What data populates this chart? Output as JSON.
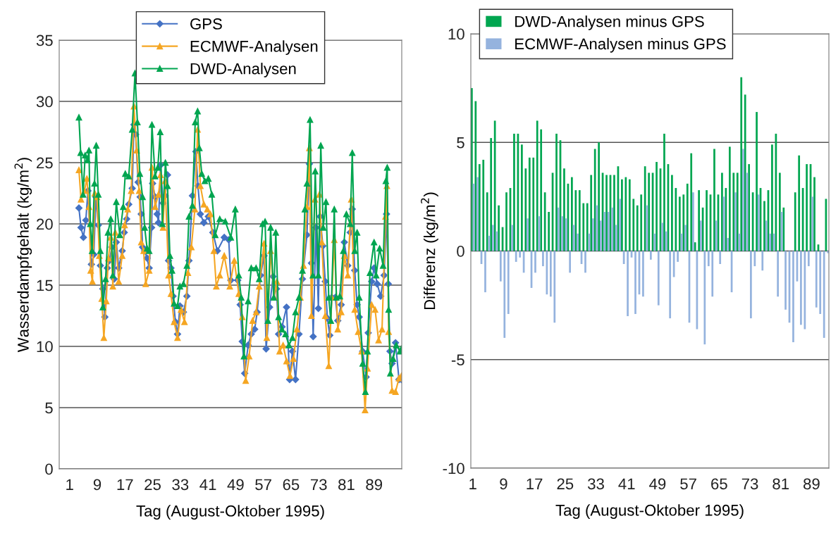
{
  "chart_data": [
    {
      "type": "line",
      "xlabel": "Tag (August-Oktober 1995)",
      "ylabel": "Wasserdampfgehalt (kg/m$^{2}$)",
      "xlim": [
        -2,
        97
      ],
      "xticks": [
        1,
        9,
        17,
        25,
        33,
        41,
        49,
        57,
        65,
        73,
        81,
        89
      ],
      "ylim": [
        0,
        35
      ],
      "yticks": [
        0,
        5,
        10,
        15,
        20,
        25,
        30,
        35
      ],
      "grid": "y",
      "legend": "top",
      "series": [
        {
          "name": "GPS",
          "color": "#4472c4",
          "marker": "diamond",
          "x": [
            3.7,
            4.3,
            5.0,
            5.7,
            6.3,
            7.3,
            8.0,
            8.6,
            9.3,
            9.9,
            10.6,
            11.2,
            11.9,
            12.5,
            13.2,
            13.9,
            14.5,
            15.2,
            16.2,
            16.8,
            17.5,
            18.1,
            19.1,
            19.6,
            20.1,
            20.8,
            21.4,
            21.7,
            22.1,
            22.7,
            23.4,
            24.0,
            24.7,
            25.0,
            25.7,
            26.3,
            26.7,
            27.3,
            28.0,
            28.6,
            29.3,
            29.6,
            30.3,
            30.9,
            31.6,
            32.2,
            32.9,
            33.9,
            34.9,
            35.5,
            36.5,
            37.5,
            38.1,
            38.8,
            39.8,
            41.1,
            42.4,
            43.7,
            45.7,
            47.0,
            47.6,
            49.6,
            50.3,
            50.9,
            51.6,
            52.6,
            53.5,
            54.5,
            55.2,
            56.2,
            57.2,
            57.8,
            58.8,
            59.8,
            60.8,
            61.4,
            62.4,
            63.7,
            64.6,
            65.4,
            66.3,
            67.3,
            68.3,
            69.6,
            70.3,
            70.9,
            71.4,
            72.2,
            72.9,
            73.4,
            74.2,
            74.9,
            75.5,
            76.2,
            76.8,
            77.8,
            78.5,
            79.5,
            80.4,
            81.4,
            82.1,
            82.7,
            83.4,
            84.1,
            84.7,
            85.7,
            86.7,
            87.3,
            88.3,
            89.0,
            89.9,
            90.9,
            91.9,
            92.6,
            93.1,
            93.6,
            94.2,
            95.2,
            96.2,
            96.9
          ],
          "values": [
            21.3,
            19.7,
            18.9,
            20.3,
            22.7,
            16.7,
            17.5,
            22.2,
            19.9,
            16.6,
            14.7,
            12.4,
            16.4,
            17.0,
            18.1,
            15.5,
            18.5,
            16.4,
            17.8,
            19.3,
            20.4,
            21.6,
            22.9,
            28.1,
            27.3,
            23.4,
            22.2,
            20.8,
            18.1,
            17.8,
            17.2,
            16.4,
            19.7,
            23.3,
            22.2,
            20.8,
            20.1,
            24.8,
            21.7,
            22.3,
            24.0,
            17.0,
            16.4,
            14.1,
            12.0,
            11.0,
            13.3,
            12.8,
            14.1,
            17.0,
            22.3,
            25.9,
            23.1,
            20.8,
            20.1,
            20.6,
            19.3,
            17.8,
            18.9,
            18.7,
            15.4,
            15.4,
            13.4,
            10.4,
            7.8,
            10.1,
            11.0,
            11.4,
            12.8,
            15.8,
            17.4,
            9.8,
            13.2,
            15.7,
            14.7,
            11.0,
            11.6,
            13.2,
            7.3,
            9.6,
            7.3,
            11.0,
            15.5,
            19.1,
            24.9,
            16.8,
            10.8,
            19.7,
            13.1,
            20.6,
            18.2,
            15.3,
            12.3,
            10.9,
            14.0,
            14.0,
            12.1,
            13.4,
            18.5,
            16.6,
            19.3,
            21.2,
            16.2,
            13.4,
            12.4,
            9.6,
            7.5,
            11.1,
            15.3,
            16.4,
            15.1,
            14.1,
            15.8,
            20.8,
            15.1,
            9.6,
            8.6,
            10.3,
            7.3,
            7.3
          ]
        },
        {
          "name": "ECMWF-Analysen",
          "color": "#f5a623",
          "marker": "triangle",
          "x": [
            3.7,
            4.3,
            5.3,
            6.0,
            6.6,
            7.1,
            7.6,
            8.3,
            8.9,
            9.6,
            10.3,
            10.9,
            11.6,
            12.2,
            12.9,
            13.5,
            14.2,
            15.2,
            16.2,
            16.9,
            17.8,
            18.8,
            19.6,
            20.4,
            21.1,
            21.7,
            22.4,
            23.0,
            24.0,
            24.8,
            25.7,
            26.7,
            27.3,
            28.0,
            28.6,
            29.6,
            30.3,
            31.2,
            32.2,
            33.2,
            34.2,
            35.2,
            36.2,
            37.2,
            38.0,
            38.8,
            39.8,
            40.8,
            41.7,
            42.7,
            43.4,
            44.4,
            45.7,
            47.3,
            48.6,
            49.9,
            50.9,
            51.9,
            52.9,
            53.9,
            54.9,
            55.8,
            57.2,
            58.0,
            59.1,
            60.1,
            60.9,
            61.7,
            62.7,
            63.7,
            64.7,
            65.7,
            66.7,
            67.7,
            68.6,
            69.6,
            70.3,
            70.9,
            71.9,
            73.2,
            73.9,
            74.9,
            75.9,
            76.8,
            77.5,
            78.5,
            79.5,
            80.4,
            81.4,
            82.4,
            83.4,
            84.4,
            85.4,
            86.4,
            87.1,
            88.3,
            89.3,
            90.3,
            91.3,
            92.3,
            92.7,
            93.2,
            94.2,
            95.2,
            96.2,
            96.9
          ],
          "values": [
            24.4,
            22.0,
            22.7,
            23.7,
            21.4,
            16.2,
            15.3,
            22.5,
            22.2,
            17.4,
            13.9,
            10.7,
            13.7,
            17.2,
            18.9,
            14.9,
            19.3,
            15.3,
            17.4,
            19.9,
            21.2,
            22.7,
            29.6,
            26.0,
            22.7,
            18.5,
            17.8,
            15.1,
            16.2,
            24.6,
            21.4,
            22.4,
            24.0,
            19.7,
            23.5,
            15.8,
            14.3,
            12.0,
            10.7,
            13.0,
            12.0,
            16.0,
            18.1,
            21.2,
            27.7,
            23.1,
            21.6,
            21.2,
            20.8,
            17.8,
            14.9,
            15.8,
            17.4,
            14.9,
            17.0,
            14.3,
            12.4,
            7.2,
            9.2,
            12.1,
            12.8,
            14.9,
            18.4,
            10.7,
            17.8,
            14.0,
            15.3,
            9.6,
            10.1,
            8.8,
            7.6,
            9.0,
            11.4,
            14.0,
            16.6,
            21.4,
            26.2,
            12.5,
            22.0,
            22.4,
            18.5,
            12.5,
            8.4,
            14.0,
            18.7,
            11.4,
            12.8,
            17.4,
            15.8,
            22.0,
            13.0,
            11.2,
            9.6,
            4.8,
            8.2,
            13.4,
            13.0,
            10.5,
            11.4,
            20.6,
            23.1,
            11.2,
            6.4,
            6.3,
            7.4,
            7.6
          ]
        },
        {
          "name": "DWD-Analysen",
          "color": "#00a550",
          "marker": "triangle",
          "x": [
            3.7,
            4.2,
            4.9,
            5.5,
            6.2,
            6.6,
            7.0,
            7.5,
            8.2,
            8.7,
            9.3,
            9.9,
            10.6,
            11.4,
            12.1,
            12.9,
            13.5,
            14.5,
            15.5,
            16.5,
            17.1,
            18.1,
            19.1,
            19.9,
            20.6,
            21.3,
            22.1,
            22.7,
            23.4,
            24.0,
            24.8,
            25.7,
            26.5,
            27.2,
            27.8,
            28.7,
            29.3,
            30.0,
            30.6,
            31.2,
            32.2,
            32.9,
            33.9,
            34.9,
            35.5,
            36.5,
            37.3,
            38.0,
            38.5,
            39.2,
            40.1,
            41.1,
            42.1,
            43.1,
            44.4,
            46.0,
            47.6,
            48.9,
            49.9,
            50.6,
            51.4,
            52.6,
            53.5,
            54.9,
            55.8,
            56.8,
            57.5,
            58.3,
            59.1,
            60.0,
            60.6,
            61.4,
            62.4,
            63.4,
            64.4,
            65.4,
            66.3,
            67.3,
            68.3,
            69.0,
            69.6,
            70.5,
            71.3,
            72.0,
            72.9,
            73.6,
            74.3,
            75.1,
            75.9,
            76.5,
            77.5,
            78.1,
            79.1,
            80.1,
            81.0,
            82.1,
            82.7,
            83.4,
            84.1,
            84.7,
            85.7,
            86.5,
            87.1,
            87.8,
            89.0,
            89.6,
            90.6,
            91.6,
            92.4,
            92.8,
            93.2,
            93.7,
            94.5,
            95.4,
            96.5,
            96.9
          ],
          "values": [
            28.7,
            25.8,
            22.4,
            25.6,
            25.2,
            26.0,
            20.0,
            17.8,
            23.3,
            26.4,
            22.4,
            17.8,
            13.2,
            15.5,
            19.3,
            20.4,
            15.8,
            21.8,
            19.1,
            21.4,
            24.1,
            23.9,
            27.7,
            32.3,
            28.3,
            24.1,
            22.2,
            19.7,
            18.0,
            17.8,
            28.1,
            23.9,
            24.6,
            27.5,
            20.0,
            25.0,
            23.1,
            17.4,
            16.2,
            13.5,
            13.3,
            14.9,
            15.1,
            16.6,
            20.6,
            21.5,
            28.3,
            29.2,
            26.2,
            24.1,
            23.5,
            23.7,
            22.4,
            19.1,
            20.4,
            20.2,
            18.9,
            21.2,
            15.8,
            14.0,
            9.2,
            13.7,
            16.4,
            16.4,
            15.5,
            20.0,
            20.2,
            12.1,
            19.7,
            14.0,
            19.3,
            12.4,
            11.4,
            11.0,
            10.1,
            10.7,
            12.8,
            14.0,
            16.2,
            21.2,
            23.3,
            28.5,
            15.8,
            24.3,
            15.8,
            26.4,
            19.7,
            21.8,
            14.0,
            12.1,
            21.2,
            14.0,
            14.1,
            17.8,
            20.8,
            20.0,
            25.8,
            17.8,
            19.3,
            14.0,
            8.6,
            6.3,
            9.6,
            16.0,
            18.5,
            15.8,
            18.0,
            16.6,
            23.5,
            24.6,
            13.0,
            7.8,
            9.0,
            10.1,
            9.6,
            9.8
          ]
        }
      ]
    },
    {
      "type": "bar",
      "xlabel": "Tag (August-Oktober 1995)",
      "ylabel": "Differenz (kg/m$^{2}$)",
      "xlim": [
        0.5,
        93.5
      ],
      "xticks": [
        1,
        9,
        17,
        25,
        33,
        41,
        49,
        57,
        65,
        73,
        81,
        89
      ],
      "ylim": [
        -10,
        10
      ],
      "yticks": [
        -10,
        -5,
        0,
        5,
        10
      ],
      "grid": "y",
      "legend": "top left",
      "x": [
        1,
        2,
        3,
        4,
        5,
        6,
        7,
        8,
        9,
        10,
        11,
        12,
        13,
        14,
        15,
        16,
        17,
        18,
        19,
        20,
        21,
        22,
        23,
        24,
        25,
        26,
        27,
        28,
        29,
        30,
        31,
        32,
        33,
        34,
        35,
        36,
        37,
        38,
        39,
        40,
        41,
        42,
        43,
        44,
        45,
        46,
        47,
        48,
        49,
        50,
        51,
        52,
        53,
        54,
        55,
        56,
        57,
        58,
        59,
        60,
        61,
        62,
        63,
        64,
        65,
        66,
        67,
        68,
        69,
        70,
        71,
        72,
        73,
        74,
        75,
        76,
        77,
        78,
        79,
        80,
        81,
        82,
        83,
        84,
        85,
        86,
        87,
        88,
        89,
        90,
        91,
        92,
        93
      ],
      "series": [
        {
          "name": "DWD-Analysen minus GPS",
          "color": "#00a650",
          "values": [
            7.5,
            6.9,
            4.0,
            4.2,
            2.7,
            5.2,
            6.0,
            2.1,
            1.1,
            2.7,
            2.9,
            5.4,
            5.4,
            4.9,
            3.8,
            4.3,
            4.3,
            6.0,
            5.6,
            2.7,
            1.8,
            3.6,
            5.4,
            5.1,
            3.8,
            3.1,
            3.4,
            2.8,
            2.8,
            2.2,
            2.2,
            3.5,
            4.7,
            5.0,
            3.6,
            3.5,
            3.5,
            3.5,
            3.9,
            3.3,
            3.4,
            3.3,
            2.4,
            2.1,
            2.6,
            3.9,
            3.6,
            3.6,
            4.1,
            3.8,
            5.4,
            4.0,
            3.5,
            2.9,
            2.5,
            2.6,
            3.1,
            4.5,
            0.4,
            2.8,
            2.0,
            2.8,
            2.6,
            4.7,
            2.6,
            3.6,
            2.9,
            4.8,
            3.6,
            3.6,
            8.0,
            7.2,
            4.0,
            2.7,
            6.4,
            2.9,
            2.3,
            2.8,
            4.9,
            5.4,
            3.6,
            2.0,
            0,
            0,
            2.7,
            4.4,
            2.9,
            4.0,
            4.0,
            3.4,
            0.3,
            0,
            2.4
          ]
        },
        {
          "name": "ECMWF-Analysen minus GPS",
          "color": "#95b3de",
          "values": [
            3.1,
            3.4,
            -0.6,
            -1.9,
            0.7,
            1.2,
            0.9,
            -1.4,
            -4.0,
            -2.9,
            1.2,
            -0.5,
            -0.3,
            -1.0,
            1.5,
            -1.7,
            -1.0,
            1.6,
            -0.7,
            -2.0,
            -2.1,
            -3.3,
            2.0,
            1.6,
            1.5,
            -1.0,
            1.2,
            0.8,
            -0.6,
            -1.0,
            0.8,
            1.5,
            2.1,
            1.4,
            1.8,
            1.8,
            2.0,
            1.2,
            2.4,
            -0.6,
            -3.0,
            -0.3,
            -2.9,
            -2.0,
            -2.1,
            2.1,
            -0.4,
            0.8,
            -2.5,
            1.3,
            0.9,
            -3.1,
            -1.2,
            -0.5,
            0.8,
            1.2,
            -3.3,
            2.7,
            -3.6,
            1.4,
            -4.3,
            -0.7,
            -2.1,
            1.4,
            -0.6,
            2.5,
            0.6,
            -1.9,
            2.7,
            0.8,
            4.7,
            3.6,
            -3.1,
            -0.7,
            2.6,
            -0.9,
            1.4,
            0.8,
            0.8,
            -2.1,
            1.8,
            -2.7,
            -3.3,
            -4.2,
            -1.4,
            -3.4,
            -3.6,
            -0.7,
            2.5,
            -2.6,
            -2.9,
            -4.0,
            -0.1
          ]
        }
      ]
    }
  ]
}
